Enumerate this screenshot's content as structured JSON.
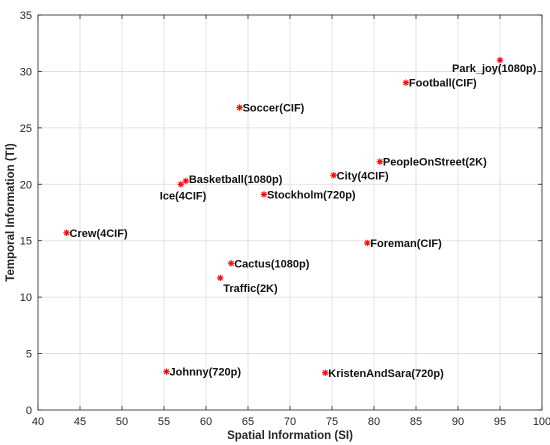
{
  "chart_data": {
    "type": "scatter",
    "xlabel": "Spatial Information  (SI)",
    "ylabel": "Temporal Information (TI)",
    "xlim": [
      40,
      100
    ],
    "ylim": [
      0,
      35
    ],
    "xticks": [
      "40",
      "45",
      "50",
      "55",
      "60",
      "65",
      "70",
      "75",
      "80",
      "85",
      "90",
      "95",
      "100"
    ],
    "yticks": [
      "0",
      "5",
      "10",
      "15",
      "20",
      "25",
      "30",
      "35"
    ],
    "grid": true,
    "marker": "asterisk",
    "marker_color": "#ff0000",
    "points": [
      {
        "label": "Park_joy(1080p)",
        "x": 95.0,
        "y": 31.0
      },
      {
        "label": "Football(CIF)",
        "x": 83.8,
        "y": 29.0
      },
      {
        "label": "Soccer(CIF)",
        "x": 64.0,
        "y": 26.8
      },
      {
        "label": "PeopleOnStreet(2K)",
        "x": 80.7,
        "y": 22.0
      },
      {
        "label": "City(4CIF)",
        "x": 75.2,
        "y": 20.8
      },
      {
        "label": "Basketball(1080p)",
        "x": 57.6,
        "y": 20.3
      },
      {
        "label": "Ice(4CIF)",
        "x": 57.0,
        "y": 20.0
      },
      {
        "label": "Stockholm(720p)",
        "x": 66.9,
        "y": 19.1
      },
      {
        "label": "Crew(4CIF)",
        "x": 43.4,
        "y": 15.7
      },
      {
        "label": "Foreman(CIF)",
        "x": 79.2,
        "y": 14.8
      },
      {
        "label": "Cactus(1080p)",
        "x": 63.0,
        "y": 13.0
      },
      {
        "label": "Traffic(2K)",
        "x": 61.7,
        "y": 11.7
      },
      {
        "label": "Johnny(720p)",
        "x": 55.3,
        "y": 3.4
      },
      {
        "label": "KristenAndSara(720p)",
        "x": 74.2,
        "y": 3.3
      }
    ]
  }
}
